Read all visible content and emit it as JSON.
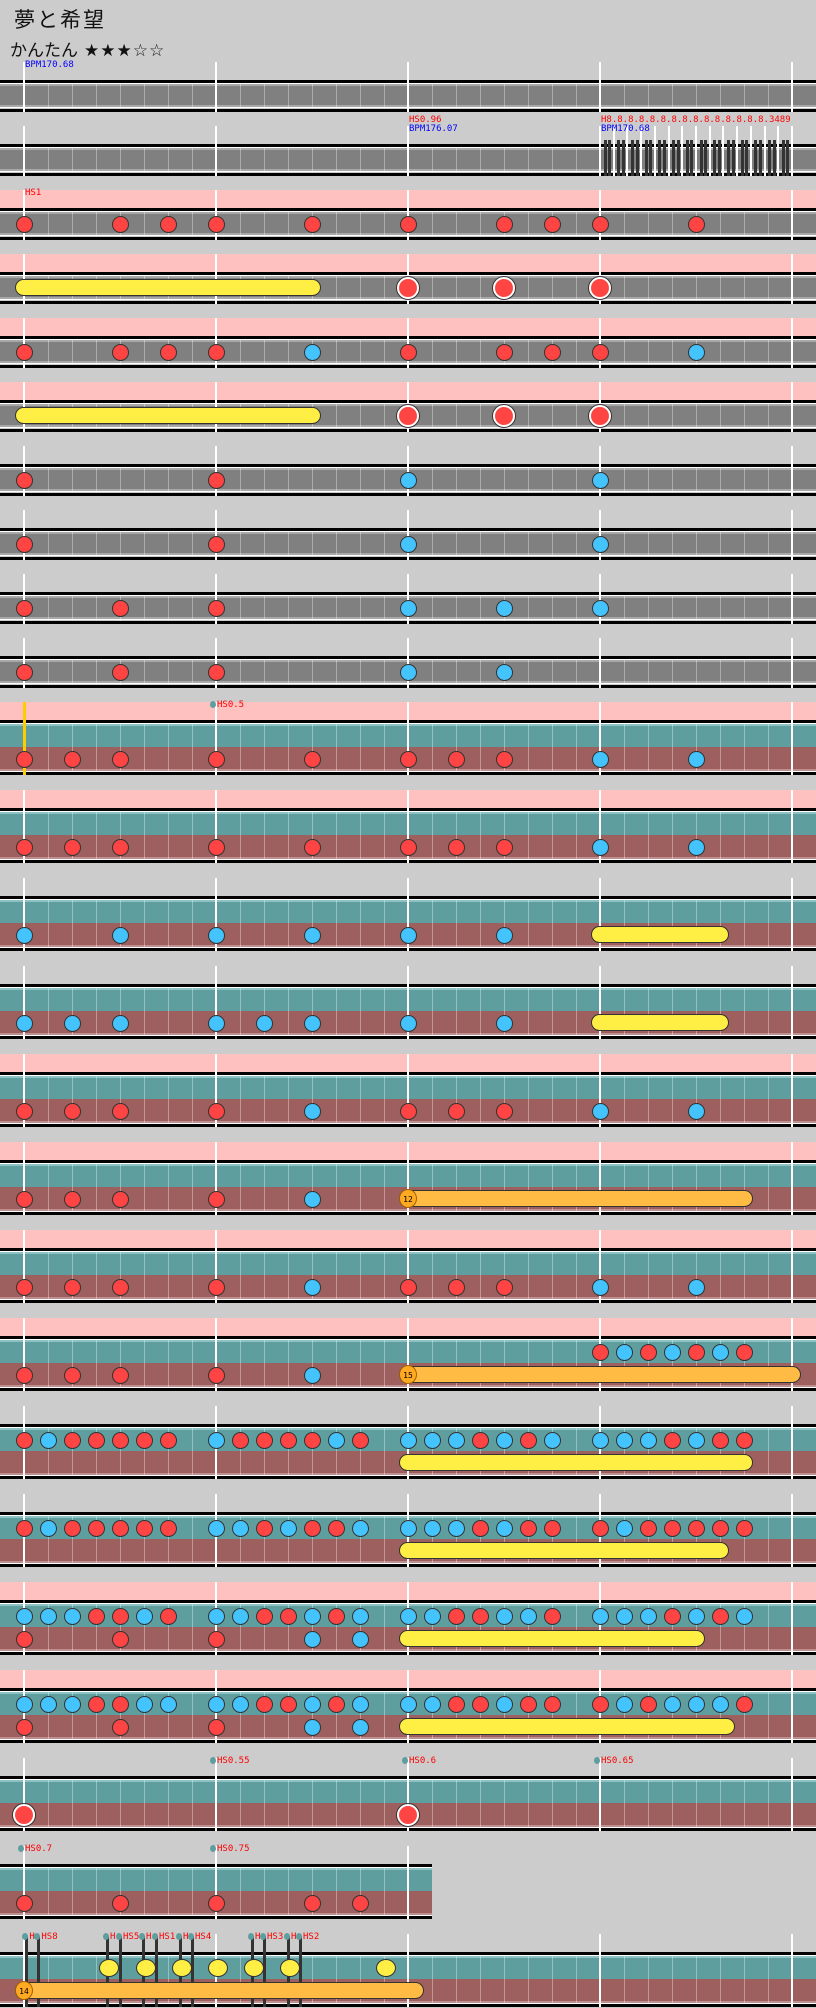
{
  "song_title": "夢と希望",
  "difficulty": "かんたん",
  "stars": "★★★☆☆",
  "colors": {
    "don": "#ff4444",
    "ka": "#44c4ff",
    "roll": "#ffee44",
    "balloon": "#ffbb44",
    "pink_band": "#ffc0c0",
    "branch_normal": "#5f9e9e",
    "branch_expert": "#9e5f5f"
  },
  "rows": [
    {
      "type": "normal",
      "measures": [
        {
          "n": "1",
          "labels": [
            {
              "t": "BPM170.68",
              "c": "bpm"
            }
          ]
        },
        {
          "n": "2"
        },
        {
          "n": "3"
        },
        {
          "n": "4"
        }
      ]
    },
    {
      "type": "normal",
      "measures": [
        {
          "n": "5"
        },
        {
          "n": "6"
        },
        {
          "n": "7",
          "labels": [
            {
              "t": "HS0.96",
              "c": "hs"
            },
            {
              "t": "BPM176.07",
              "c": "bpm"
            }
          ]
        },
        {
          "n": "8",
          "labels": [
            {
              "t": "H8.8.8.8.8.8.8.8.8.8.8.8.8.8.8.3489",
              "c": "hs"
            },
            {
              "t": "BPM170.68",
              "c": "bpm"
            }
          ]
        },
        {
          "n": "9"
        },
        {
          "n": "10"
        },
        {
          "n": "11"
        },
        {
          "n": "12"
        },
        {
          "n": "13"
        },
        {
          "n": "14"
        },
        {
          "n": "15"
        },
        {
          "n": "16"
        },
        {
          "n": "17"
        },
        {
          "n": "18"
        },
        {
          "n": "19"
        },
        {
          "n": "20"
        },
        {
          "n": "21"
        }
      ]
    },
    {
      "type": "normal",
      "pink": true,
      "measures": [
        {
          "n": "22",
          "m": "d...d.d.",
          "labels": [
            {
              "t": "HS1",
              "c": "hs"
            }
          ]
        },
        {
          "n": "23",
          "m": "d...d..."
        },
        {
          "n": "24",
          "m": "d...d.d."
        },
        {
          "n": "25",
          "m": "d...d..."
        }
      ]
    },
    {
      "type": "normal",
      "pink": true,
      "measures": [
        {
          "n": "26"
        },
        {
          "n": "27"
        },
        {
          "n": "28",
          "m": "D...D..."
        },
        {
          "n": "29",
          "m": "D......."
        }
      ],
      "rolls": [
        {
          "lane": "m",
          "start": 0,
          "end": 12,
          "kind": "roll"
        }
      ]
    },
    {
      "type": "normal",
      "pink": true,
      "measures": [
        {
          "n": "30",
          "m": "d...d.d."
        },
        {
          "n": "31",
          "m": "d...k..."
        },
        {
          "n": "32",
          "m": "d...d.d."
        },
        {
          "n": "33",
          "m": "d...k..."
        }
      ]
    },
    {
      "type": "normal",
      "pink": true,
      "measures": [
        {
          "n": "34"
        },
        {
          "n": "35"
        },
        {
          "n": "36",
          "m": "D...D..."
        },
        {
          "n": "37",
          "m": "D......."
        }
      ],
      "rolls": [
        {
          "lane": "m",
          "start": 0,
          "end": 12,
          "kind": "roll"
        }
      ]
    },
    {
      "type": "normal",
      "measures": [
        {
          "n": "38",
          "m": "d......."
        },
        {
          "n": "39",
          "m": "d......."
        },
        {
          "n": "40",
          "m": "k......."
        },
        {
          "n": "41",
          "m": "k......."
        }
      ]
    },
    {
      "type": "normal",
      "measures": [
        {
          "n": "42",
          "m": "d......."
        },
        {
          "n": "43",
          "m": "d......."
        },
        {
          "n": "44",
          "m": "k......."
        },
        {
          "n": "45",
          "m": "k......."
        }
      ]
    },
    {
      "type": "normal",
      "measures": [
        {
          "n": "46",
          "m": "d...d..."
        },
        {
          "n": "47",
          "m": "d......."
        },
        {
          "n": "48",
          "m": "k...k..."
        },
        {
          "n": "49",
          "m": "k......."
        }
      ]
    },
    {
      "type": "normal",
      "measures": [
        {
          "n": "50",
          "m": "d...d..."
        },
        {
          "n": "51",
          "m": "d......."
        },
        {
          "n": "52",
          "m": "k...k..."
        },
        {
          "n": "53"
        }
      ]
    },
    {
      "type": "branch",
      "pink": true,
      "branch_start": true,
      "measures": [
        {
          "n": "54",
          "b": "d.d.d..."
        },
        {
          "n": "55",
          "b": "d...d...",
          "labels": [
            {
              "t": "HS0.5",
              "c": "hs",
              "dot": true
            }
          ]
        },
        {
          "n": "56",
          "b": "d.d.d..."
        },
        {
          "n": "57",
          "b": "k...k..."
        }
      ]
    },
    {
      "type": "branch",
      "pink": true,
      "measures": [
        {
          "n": "58",
          "b": "d.d.d..."
        },
        {
          "n": "59",
          "b": "d...d..."
        },
        {
          "n": "60",
          "b": "d.d.d..."
        },
        {
          "n": "61",
          "b": "k...k..."
        }
      ]
    },
    {
      "type": "branch",
      "measures": [
        {
          "n": "62",
          "b": "k...k..."
        },
        {
          "n": "63",
          "b": "k...k..."
        },
        {
          "n": "64",
          "b": "k...k..."
        },
        {
          "n": "65"
        }
      ],
      "rolls": [
        {
          "lane": "b",
          "start": 24,
          "end": 29,
          "kind": "roll"
        }
      ]
    },
    {
      "type": "branch",
      "measures": [
        {
          "n": "66",
          "b": "k.k.k..."
        },
        {
          "n": "67",
          "b": "k.k.k..."
        },
        {
          "n": "68",
          "b": "k...k..."
        },
        {
          "n": "69"
        }
      ],
      "rolls": [
        {
          "lane": "b",
          "start": 24,
          "end": 29,
          "kind": "roll"
        }
      ]
    },
    {
      "type": "branch",
      "pink": true,
      "measures": [
        {
          "n": "70",
          "b": "d.d.d..."
        },
        {
          "n": "71",
          "b": "d...k..."
        },
        {
          "n": "72",
          "b": "d.d.d..."
        },
        {
          "n": "73",
          "b": "k...k..."
        }
      ]
    },
    {
      "type": "branch",
      "pink": true,
      "measures": [
        {
          "n": "74",
          "b": "d.d.d..."
        },
        {
          "n": "75",
          "b": "d...k..."
        },
        {
          "n": "76"
        },
        {
          "n": "77"
        }
      ],
      "rolls": [
        {
          "lane": "b",
          "start": 16,
          "end": 30,
          "kind": "balloon",
          "count": "12"
        }
      ]
    },
    {
      "type": "branch",
      "pink": true,
      "measures": [
        {
          "n": "78",
          "b": "d.d.d..."
        },
        {
          "n": "79",
          "b": "d...k..."
        },
        {
          "n": "80",
          "b": "d.d.d..."
        },
        {
          "n": "81",
          "b": "k...k..."
        }
      ]
    },
    {
      "type": "branch",
      "pink": true,
      "measures": [
        {
          "n": "82",
          "b": "d.d.d..."
        },
        {
          "n": "83",
          "b": "d...k..."
        },
        {
          "n": "84"
        },
        {
          "n": "85",
          "t": "dkdkdkd."
        }
      ],
      "rolls": [
        {
          "lane": "b",
          "start": 16,
          "end": 32,
          "kind": "balloon",
          "count": "15"
        }
      ]
    },
    {
      "type": "branch",
      "measures": [
        {
          "n": "86",
          "t": "dkddddd."
        },
        {
          "n": "87",
          "t": "kddddkd."
        },
        {
          "n": "88",
          "t": "kkkdkdk."
        },
        {
          "n": "89",
          "t": "kkkdkdd."
        }
      ],
      "rolls": [
        {
          "lane": "b",
          "start": 16,
          "end": 30,
          "kind": "roll"
        }
      ]
    },
    {
      "type": "branch",
      "measures": [
        {
          "n": "90",
          "t": "dkddddd."
        },
        {
          "n": "91",
          "t": "kkdkddk."
        },
        {
          "n": "92",
          "t": "kkkdkdd."
        },
        {
          "n": "93",
          "t": "dkddddd."
        }
      ],
      "rolls": [
        {
          "lane": "b",
          "start": 16,
          "end": 29,
          "kind": "roll"
        }
      ]
    },
    {
      "type": "branch",
      "pink": true,
      "measures": [
        {
          "n": "94",
          "t": "kkkddkd.",
          "b": "d...d..."
        },
        {
          "n": "95",
          "t": "kkddkdk.",
          "b": "d...k.k."
        },
        {
          "n": "96",
          "t": "kkddkkd."
        },
        {
          "n": "97",
          "t": "kkkdkdk."
        }
      ],
      "rolls": [
        {
          "lane": "b",
          "start": 16,
          "end": 28,
          "kind": "roll"
        }
      ]
    },
    {
      "type": "branch",
      "pink": true,
      "measures": [
        {
          "n": "98",
          "t": "kkkddkk.",
          "b": "d...d..."
        },
        {
          "n": "99",
          "t": "kkddkdk.",
          "b": "d...k.k."
        },
        {
          "n": "100",
          "t": "kkddkdd."
        },
        {
          "n": "101",
          "t": "dkdkkkd."
        }
      ],
      "rolls": [
        {
          "lane": "b",
          "start": 16,
          "end": 29.25,
          "kind": "roll"
        }
      ]
    },
    {
      "type": "branch",
      "measures": [
        {
          "n": "102",
          "b": "D......."
        },
        {
          "n": "103",
          "labels": [
            {
              "t": "HS0.55",
              "c": "hs",
              "dot": true
            }
          ]
        },
        {
          "n": "104",
          "b": "D.......",
          "labels": [
            {
              "t": "HS0.6",
              "c": "hs",
              "dot": true
            }
          ]
        },
        {
          "n": "105",
          "labels": [
            {
              "t": "HS0.65",
              "c": "hs",
              "dot": true
            }
          ]
        }
      ]
    },
    {
      "type": "branch",
      "short": true,
      "measures": [
        {
          "n": "106",
          "b": "d...d...",
          "labels": [
            {
              "t": "HS0.7",
              "c": "hs",
              "dot": true
            }
          ]
        },
        {
          "n": "107",
          "b": "d...d.d.",
          "labels": [
            {
              "t": "HS0.75",
              "c": "hs",
              "dot": true
            }
          ]
        }
      ]
    },
    {
      "type": "branch",
      "measures": [
        {
          "n": "108"
        },
        {
          "n": ""
        },
        {
          "n": ""
        },
        {
          "n": ""
        }
      ],
      "yellow_notes": [
        3.56,
        5.07,
        6.57,
        8.09,
        9.59,
        11.1,
        15.1
      ],
      "rolls": [
        {
          "lane": "b",
          "start": 0,
          "end": 16.3,
          "kind": "balloon",
          "count": "14"
        }
      ],
      "markers": [
        {
          "pos": 0.1,
          "label": "H"
        },
        {
          "pos": 0.6,
          "label": "HS8"
        },
        {
          "pos": 3.46,
          "label": "H"
        },
        {
          "pos": 4,
          "label": "HS5"
        },
        {
          "pos": 4.96,
          "label": "H"
        },
        {
          "pos": 5.5,
          "label": "HS1"
        },
        {
          "pos": 6.5,
          "label": "H"
        },
        {
          "pos": 7,
          "label": "HS4"
        },
        {
          "pos": 9.5,
          "label": "H"
        },
        {
          "pos": 10,
          "label": "HS3"
        },
        {
          "pos": 11,
          "label": "H"
        },
        {
          "pos": 11.5,
          "label": "HS2"
        }
      ]
    }
  ]
}
